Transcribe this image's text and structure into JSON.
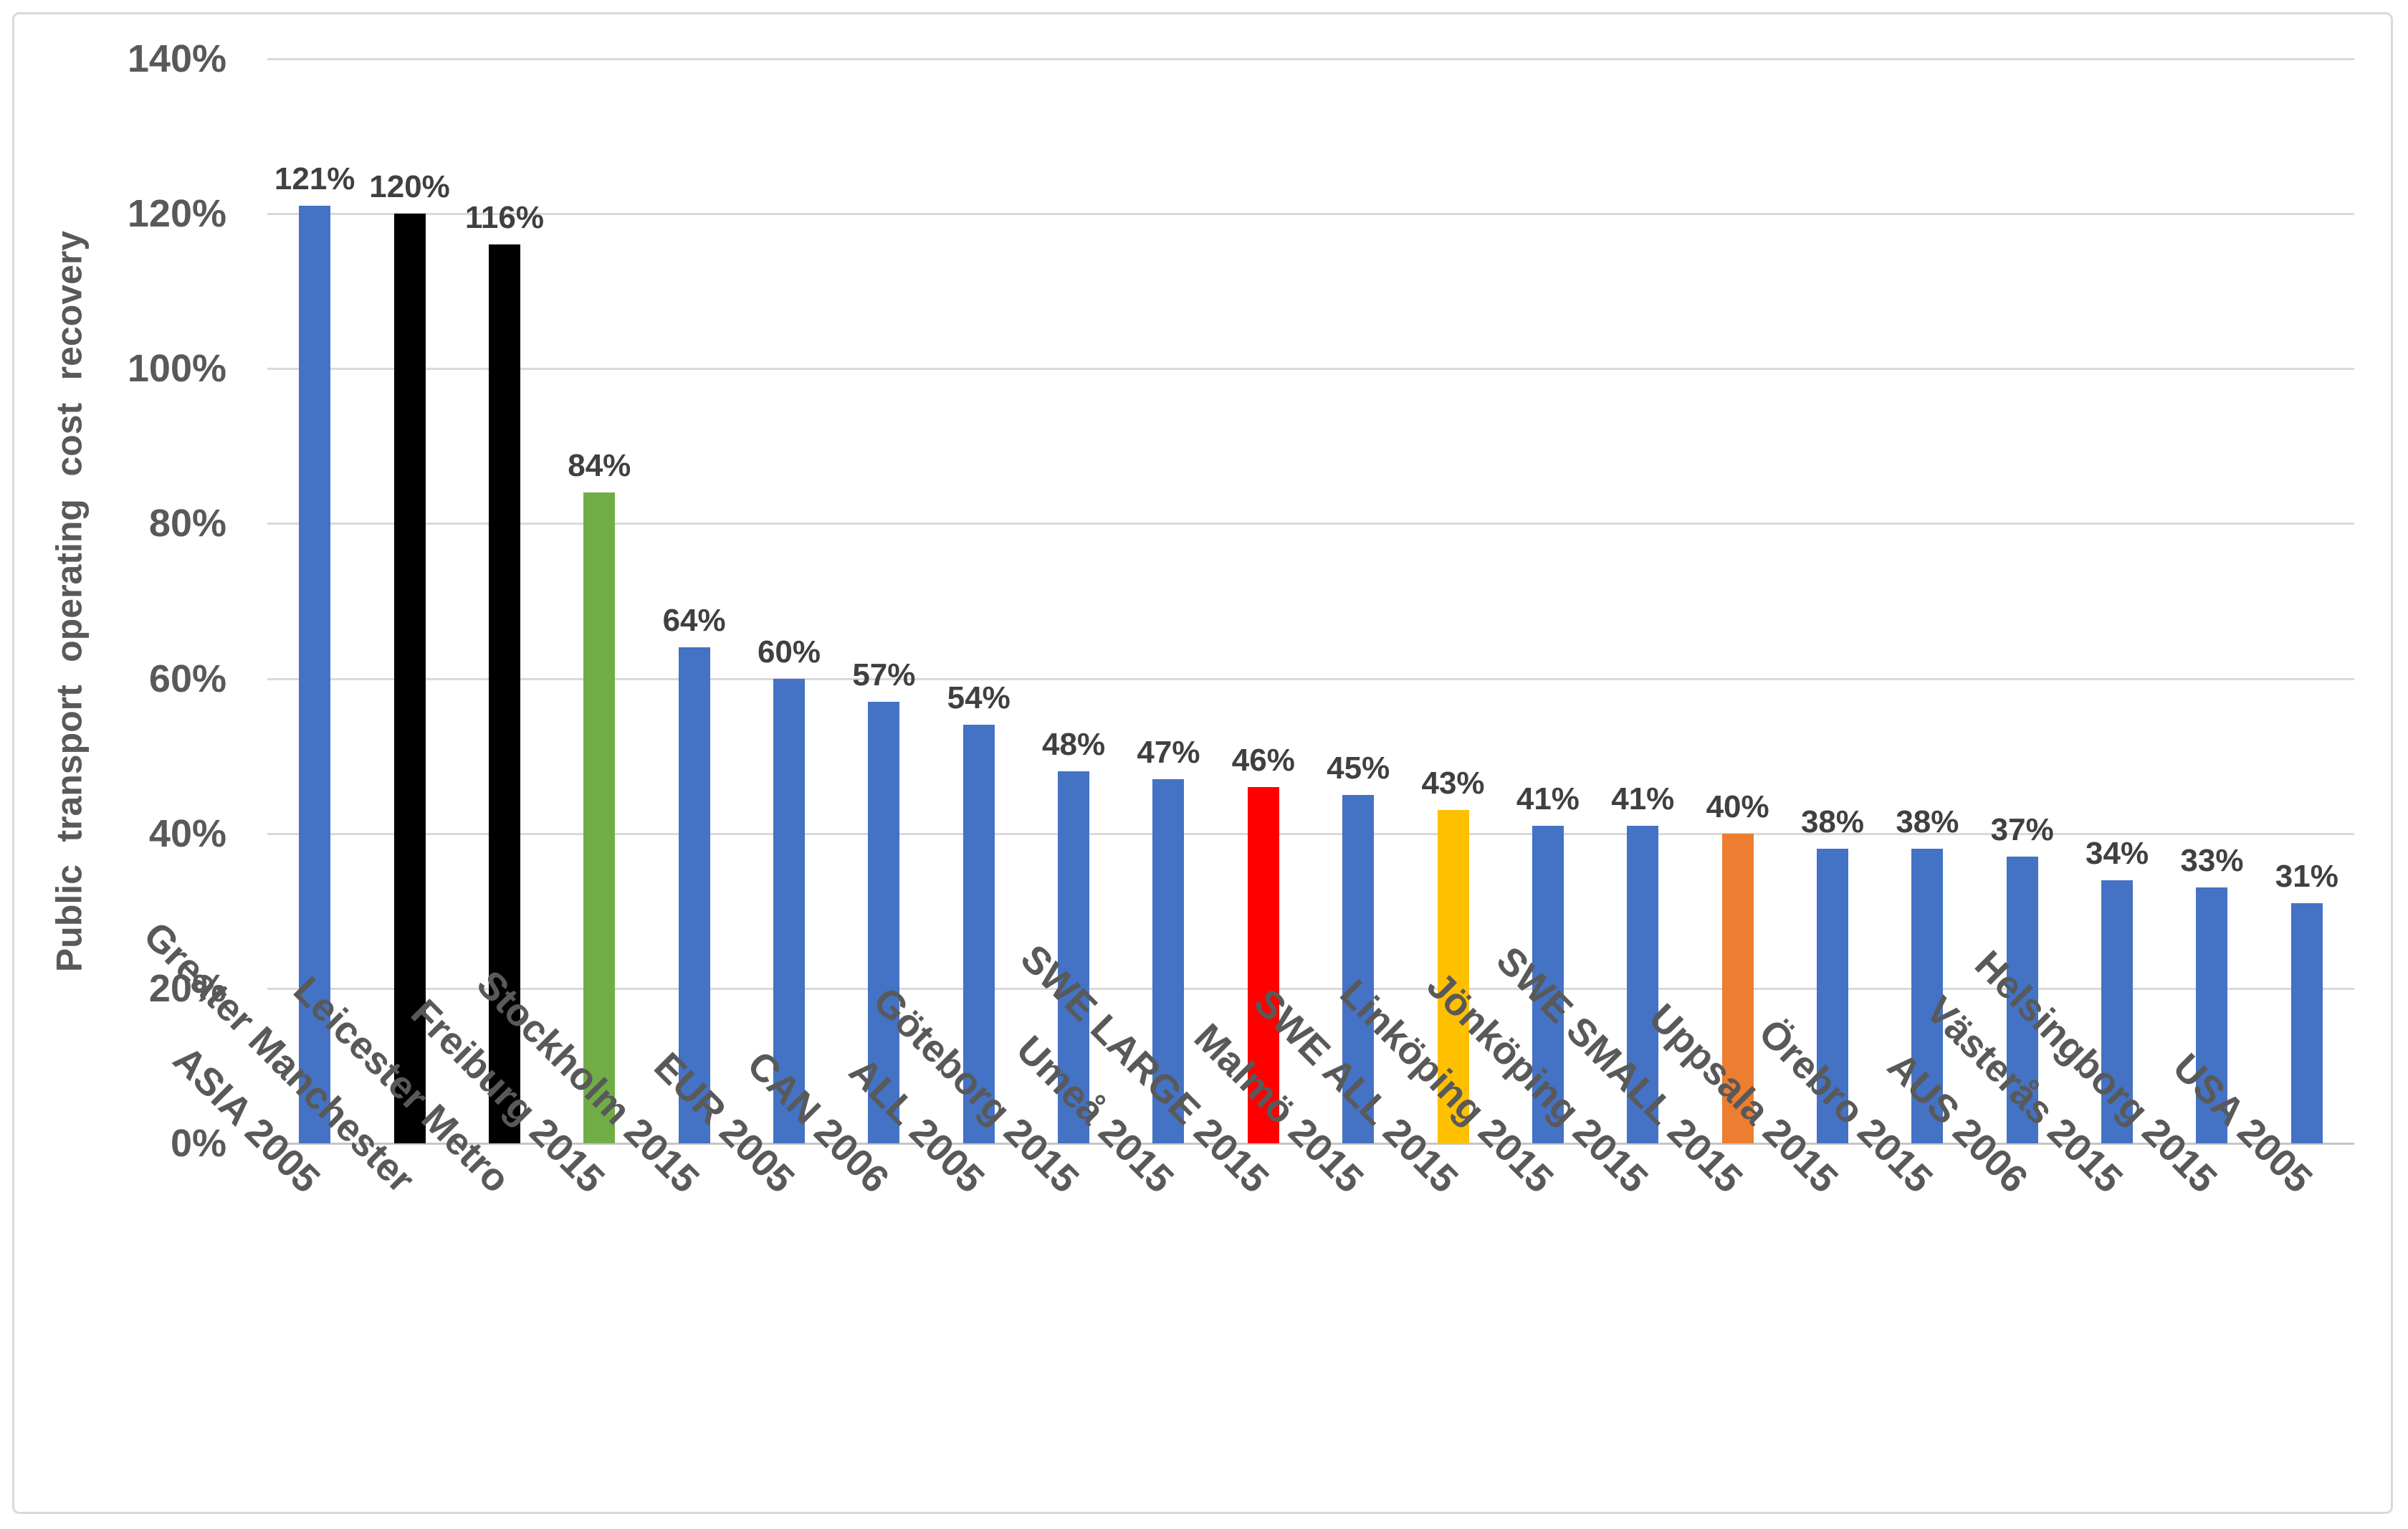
{
  "chart_data": {
    "type": "bar",
    "title": "",
    "xlabel": "",
    "ylabel": "Public transport operating cost recovery",
    "ylim": [
      0,
      140
    ],
    "grid": true,
    "legend": false,
    "yticks": [
      {
        "value": 0,
        "label": "0%"
      },
      {
        "value": 20,
        "label": "20%"
      },
      {
        "value": 40,
        "label": "40%"
      },
      {
        "value": 60,
        "label": "60%"
      },
      {
        "value": 80,
        "label": "80%"
      },
      {
        "value": 100,
        "label": "100%"
      },
      {
        "value": 120,
        "label": "120%"
      },
      {
        "value": 140,
        "label": "140%"
      }
    ],
    "categories": [
      "ASIA 2005",
      "Greater Manchester",
      "Leicester Metro",
      "Freiburg 2015",
      "Stockholm 2015",
      "EUR 2005",
      "CAN 2006",
      "ALL 2005",
      "Göteborg 2015",
      "Umeå 2015",
      "SWE LARGE 2015",
      "Malmö 2015",
      "SWE ALL 2015",
      "Linköping 2015",
      "Jönköping 2015",
      "SWE SMALL 2015",
      "Uppsala 2015",
      "Örebro 2015",
      "AUS 2006",
      "Västerås 2015",
      "Helsingborg 2015",
      "USA 2005"
    ],
    "series": [
      {
        "name": "Public transport operating cost recovery",
        "values": [
          121,
          120,
          116,
          84,
          64,
          60,
          57,
          54,
          48,
          47,
          46,
          45,
          43,
          41,
          41,
          40,
          38,
          38,
          37,
          34,
          33,
          31
        ]
      }
    ],
    "data_labels": [
      "121%",
      "120%",
      "116%",
      "84%",
      "64%",
      "60%",
      "57%",
      "54%",
      "48%",
      "47%",
      "46%",
      "45%",
      "43%",
      "41%",
      "41%",
      "40%",
      "38%",
      "38%",
      "37%",
      "34%",
      "33%",
      "31%"
    ],
    "bar_colors": [
      "#4472C4",
      "#000000",
      "#000000",
      "#70AD47",
      "#4472C4",
      "#4472C4",
      "#4472C4",
      "#4472C4",
      "#4472C4",
      "#4472C4",
      "#FF0000",
      "#4472C4",
      "#FFC000",
      "#4472C4",
      "#4472C4",
      "#ED7D31",
      "#4472C4",
      "#4472C4",
      "#4472C4",
      "#4472C4",
      "#4472C4",
      "#4472C4"
    ]
  },
  "style": {
    "background": "#FFFFFF",
    "frame_border": "#D9D9D9",
    "gridline_color": "#D9D9D9",
    "axis_line_color": "#C6C6C6",
    "tick_label_color": "#595959",
    "category_label_color": "#595959",
    "data_label_color": "#404040",
    "axis_title_color": "#595959",
    "default_bar_color": "#4472C4",
    "highlight_black": "#000000",
    "highlight_green": "#70AD47",
    "highlight_red": "#FF0000",
    "highlight_yellow": "#FFC000",
    "highlight_orange": "#ED7D31"
  }
}
